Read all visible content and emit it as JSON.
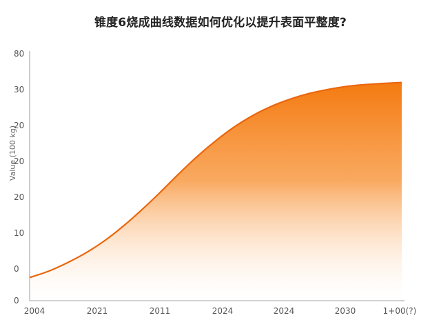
{
  "chart_data": {
    "type": "area",
    "title": "锥度6烧成曲线数据如何优化以提升表面平整度?",
    "xlabel": "",
    "ylabel": "Value (100 kg)",
    "x_tick_labels": [
      "2004",
      "2021",
      "2011",
      "2024",
      "2024",
      "2030",
      "1+00(?)"
    ],
    "y_tick_labels": [
      "0",
      "0",
      "10",
      "20",
      "20",
      "20",
      "30",
      "80"
    ],
    "ylim": [
      0,
      80
    ],
    "grid": false,
    "legend": "none",
    "series": [
      {
        "x": [
          0,
          0.05,
          0.1,
          0.15,
          0.2,
          0.25,
          0.3,
          0.35,
          0.4,
          0.45,
          0.5,
          0.55,
          0.6,
          0.65,
          0.7,
          0.75,
          0.8,
          0.85,
          0.9,
          0.95,
          1.0
        ],
        "values": [
          7.5,
          9.5,
          12.2,
          15.4,
          19.3,
          24.0,
          29.3,
          35.0,
          41.0,
          46.7,
          51.8,
          56.3,
          60.0,
          63.0,
          65.3,
          67.1,
          68.4,
          69.4,
          70.0,
          70.4,
          70.7
        ]
      }
    ],
    "colors": {
      "line": "#e9660c",
      "fill_top": "#f47a10",
      "fill_bottom": "#ffffff",
      "axis": "#9a9a9a"
    }
  }
}
